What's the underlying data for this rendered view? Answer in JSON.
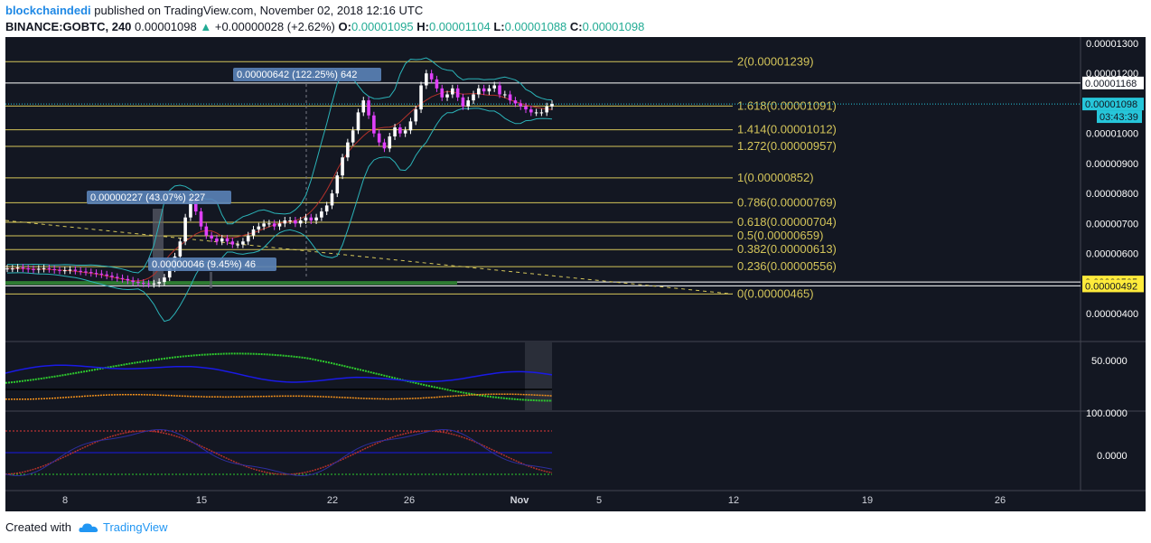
{
  "header": {
    "author": "blockchaindedi",
    "published": " published on TradingView.com, November 02, 2018 12:16 UTC",
    "symbol": "BINANCE:GOBTC, 240",
    "last": "0.00001098",
    "change": "+0.00000028 (+2.62%)",
    "o_label": "O:",
    "o_value": "0.00001095",
    "h_label": "H:",
    "h_value": "0.00001104",
    "l_label": "L:",
    "l_value": "0.00001088",
    "c_label": "C:",
    "c_value": "0.00001098"
  },
  "footer": {
    "created_with": "Created with",
    "brand": "TradingView"
  },
  "colors": {
    "background": "#131722",
    "up_candle": "#ffffff",
    "down_candle": "#e040fb",
    "fib": "#d4c55a",
    "bollinger": "#2bb3b8",
    "ma": "#b2312b",
    "adx": "#1a1ae6",
    "di_orange": "#f5921b",
    "green": "#2ecc2e",
    "pink": "#e040fb"
  },
  "chart_data": {
    "type": "line",
    "title": "",
    "price_axis": {
      "ticks": [
        "0.00001300",
        "0.00001200",
        "0.00001000",
        "0.00000900",
        "0.00000800",
        "0.00000700",
        "0.00000600",
        "0.00000400"
      ],
      "ylim": [
        3.6e-06,
        1.32e-05
      ],
      "tags": [
        {
          "label": "0.00001168",
          "value": 1.168e-05,
          "style": "white"
        },
        {
          "label": "0.00001098",
          "value": 1.098e-05,
          "style": "cyan"
        },
        {
          "label": "03:43:39",
          "value": 1.056e-05,
          "style": "cyan"
        },
        {
          "label": "0.00000505",
          "value": 5.05e-06,
          "style": "yellow"
        },
        {
          "label": "0.00000492",
          "value": 4.92e-06,
          "style": "yellow"
        }
      ]
    },
    "x_ticks": [
      "8",
      "15",
      "22",
      "26",
      "Nov",
      "5",
      "12",
      "19",
      "26"
    ],
    "fib_levels": [
      {
        "label": "2(0.00001239)",
        "value": 1.239e-05
      },
      {
        "label": "1.618(0.00001091)",
        "value": 1.091e-05
      },
      {
        "label": "1.414(0.00001012)",
        "value": 1.012e-05
      },
      {
        "label": "1.272(0.00000957)",
        "value": 9.57e-06
      },
      {
        "label": "1(0.00000852)",
        "value": 8.52e-06
      },
      {
        "label": "0.786(0.00000769)",
        "value": 7.69e-06
      },
      {
        "label": "0.618(0.00000704)",
        "value": 7.04e-06
      },
      {
        "label": "0.5(0.00000659)",
        "value": 6.59e-06
      },
      {
        "label": "0.382(0.00000613)",
        "value": 6.13e-06
      },
      {
        "label": "0.236(0.00000556)",
        "value": 5.56e-06
      },
      {
        "label": "0(0.00000465)",
        "value": 4.65e-06
      }
    ],
    "callouts": [
      {
        "label": "0.00000642 (122.25%) 642"
      },
      {
        "label": "0.00000227 (43.07%) 227"
      },
      {
        "label": "0.00000046 (9.45%) 46"
      }
    ],
    "price_series": [
      5.5e-06,
      5.5e-06,
      5.53e-06,
      5.5e-06,
      5.48e-06,
      5.46e-06,
      5.49e-06,
      5.51e-06,
      5.48e-06,
      5.45e-06,
      5.43e-06,
      5.44e-06,
      5.46e-06,
      5.42e-06,
      5.4e-06,
      5.38e-06,
      5.35e-06,
      5.33e-06,
      5.3e-06,
      5.26e-06,
      5.22e-06,
      5.18e-06,
      5.15e-06,
      5.1e-06,
      5.05e-06,
      5.02e-06,
      5e-06,
      4.98e-06,
      5e-06,
      5.05e-06,
      5.2e-06,
      5.5e-06,
      5.9e-06,
      6.4e-06,
      7.2e-06,
      7.8e-06,
      7.4e-06,
      6.9e-06,
      6.6e-06,
      6.5e-06,
      6.4e-06,
      6.5e-06,
      6.4e-06,
      6.3e-06,
      6.3e-06,
      6.4e-06,
      6.6e-06,
      6.8e-06,
      6.9e-06,
      7e-06,
      7e-06,
      6.9e-06,
      7e-06,
      7.1e-06,
      7.1e-06,
      7e-06,
      7.1e-06,
      7.2e-06,
      7.1e-06,
      7.2e-06,
      7.4e-06,
      7.6e-06,
      8e-06,
      8.6e-06,
      9.2e-06,
      9.7e-06,
      1.01e-05,
      1.07e-05,
      1.11e-05,
      1.06e-05,
      1e-05,
      9.7e-06,
      9.5e-06,
      9.9e-06,
      1.02e-05,
      1e-05,
      1.01e-05,
      1.04e-05,
      1.08e-05,
      1.16e-05,
      1.2e-05,
      1.18e-05,
      1.15e-05,
      1.12e-05,
      1.13e-05,
      1.15e-05,
      1.12e-05,
      1.09e-05,
      1.11e-05,
      1.13e-05,
      1.15e-05,
      1.14e-05,
      1.15e-05,
      1.16e-05,
      1.13e-05,
      1.13e-05,
      1.11e-05,
      1.1e-05,
      1.09e-05,
      1.08e-05,
      1.07e-05,
      1.07e-05,
      1.07e-05,
      1.09e-05,
      1.098e-05
    ]
  }
}
